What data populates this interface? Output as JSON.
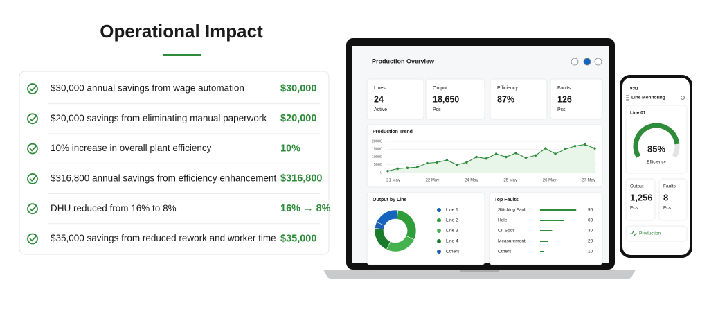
{
  "title": "Operational Impact",
  "impacts": [
    {
      "text": "$30,000 annual savings from wage automation",
      "value": "$30,000"
    },
    {
      "text": "$20,000 savings from eliminating manual paperwork",
      "value": "$20,000"
    },
    {
      "text": "10% increase in overall plant efficiency",
      "value": "10%"
    },
    {
      "text": "$316,800 annual savings from efficiency enhancement",
      "value": "$316,800"
    },
    {
      "text": "DHU reduced from 16% to 8%",
      "value": "16% → 8%"
    },
    {
      "text": "$35,000 savings from reduced rework and worker time",
      "value": "$35,000"
    }
  ],
  "dashboard": {
    "title": "Production Overview",
    "kpis": [
      {
        "label": "Lines",
        "value": "24",
        "unit": "Active"
      },
      {
        "label": "Output",
        "value": "18,650",
        "unit": "Pcs"
      },
      {
        "label": "Efficiency",
        "value": "87%"
      },
      {
        "label": "Faults",
        "value": "126",
        "unit": "Pcs"
      }
    ],
    "trend": {
      "title": "Production Trend",
      "ylim": [
        0,
        20000
      ],
      "yticks": [
        0,
        5000,
        10000,
        15000,
        20000
      ],
      "labels": [
        "21 May",
        "22 May",
        "24 May",
        "25 May",
        "26 May",
        "27 May"
      ],
      "values": [
        1000,
        2500,
        3000,
        3500,
        6000,
        6500,
        8000,
        5000,
        6500,
        10000,
        9000,
        12000,
        10000,
        12500,
        9500,
        11000,
        15500,
        12000,
        15000,
        17000,
        18000,
        15500
      ]
    },
    "output_by_line": {
      "title": "Output by Line",
      "series": [
        {
          "name": "Line 1",
          "color": "#1565c0",
          "value": 20
        },
        {
          "name": "Line 2",
          "color": "#2e9d3a",
          "value": 30
        },
        {
          "name": "Line 3",
          "color": "#45b24f",
          "value": 25
        },
        {
          "name": "Line 4",
          "color": "#1b7a2b",
          "value": 20
        },
        {
          "name": "Others",
          "color": "#1e5fb0",
          "value": 5
        }
      ]
    },
    "top_faults": {
      "title": "Top Faults",
      "items": [
        {
          "name": "Stitching Fault",
          "value": 90
        },
        {
          "name": "Hole",
          "value": 60
        },
        {
          "name": "Oil Spot",
          "value": 30
        },
        {
          "name": "Measurement",
          "value": 20
        },
        {
          "name": "Others",
          "value": 10
        }
      ]
    }
  },
  "phone": {
    "time": "9:41",
    "title": "Line Monitoring",
    "line": "Line 01",
    "efficiency": {
      "value": 85,
      "label": "85%"
    },
    "efficiency_label": "Efficiency",
    "output": {
      "label": "Output",
      "value": "1,256",
      "unit": "Pcs"
    },
    "faults": {
      "label": "Faults",
      "value": "8",
      "unit": "Pcs"
    },
    "tab": "Production"
  }
}
